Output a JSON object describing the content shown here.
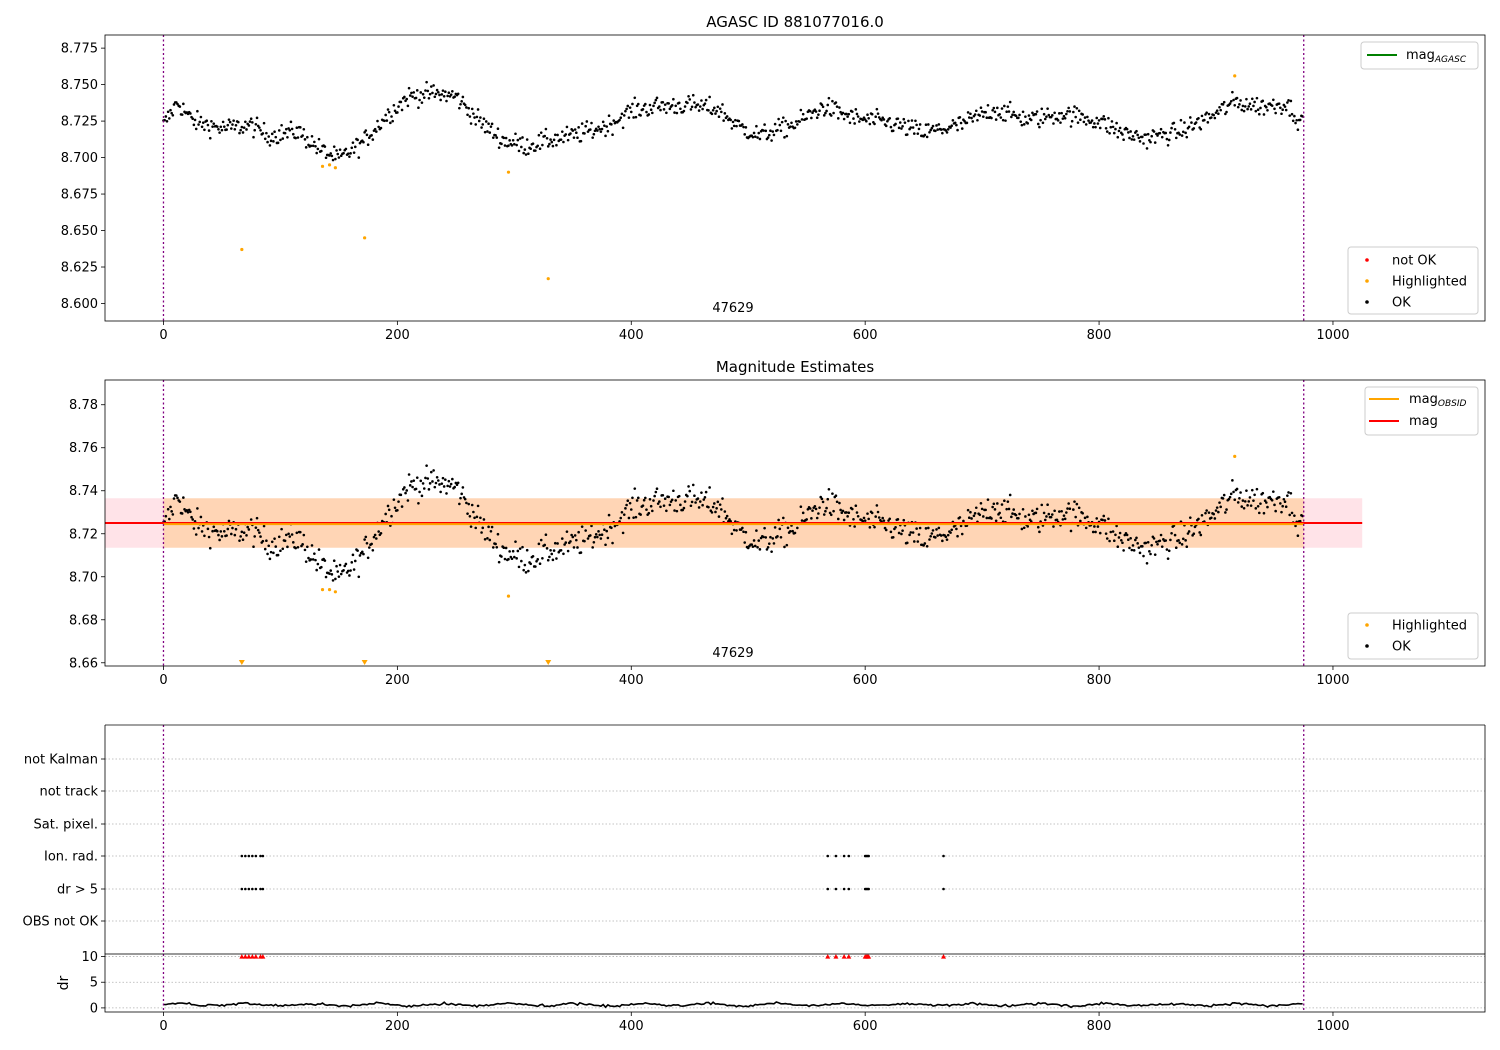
{
  "chart_data": [
    {
      "type": "scatter",
      "title": "AGASC ID 881077016.0",
      "annotation": "47629",
      "xlim": [
        -50,
        1130
      ],
      "ylim": [
        8.588,
        8.784
      ],
      "xticks": [
        0,
        200,
        400,
        600,
        800,
        1000
      ],
      "yticks": [
        8.6,
        8.625,
        8.65,
        8.675,
        8.7,
        8.725,
        8.75,
        8.775
      ],
      "ytick_labels": [
        "8.600",
        "8.625",
        "8.650",
        "8.675",
        "8.700",
        "8.725",
        "8.750",
        "8.775"
      ],
      "vlines": [
        0,
        975
      ],
      "legend_lines": [
        {
          "label": "mag",
          "sub": "AGASC",
          "color": "#008000"
        }
      ],
      "legend_points": [
        {
          "label": "not OK",
          "color": "#ff0000"
        },
        {
          "label": "Highlighted",
          "color": "#ffa500"
        },
        {
          "label": "OK",
          "color": "#000000"
        }
      ],
      "highlighted": [
        [
          67,
          8.637
        ],
        [
          136,
          8.694
        ],
        [
          142,
          8.695
        ],
        [
          147,
          8.693
        ],
        [
          172,
          8.645
        ],
        [
          295,
          8.69
        ],
        [
          329,
          8.617
        ],
        [
          916,
          8.756
        ]
      ],
      "ok_trend": [
        [
          0,
          8.722
        ],
        [
          12,
          8.738
        ],
        [
          25,
          8.725
        ],
        [
          50,
          8.72
        ],
        [
          75,
          8.722
        ],
        [
          90,
          8.715
        ],
        [
          115,
          8.718
        ],
        [
          135,
          8.705
        ],
        [
          150,
          8.699
        ],
        [
          170,
          8.71
        ],
        [
          190,
          8.728
        ],
        [
          210,
          8.742
        ],
        [
          230,
          8.744
        ],
        [
          250,
          8.742
        ],
        [
          270,
          8.725
        ],
        [
          290,
          8.712
        ],
        [
          310,
          8.708
        ],
        [
          330,
          8.712
        ],
        [
          350,
          8.715
        ],
        [
          380,
          8.722
        ],
        [
          400,
          8.732
        ],
        [
          420,
          8.735
        ],
        [
          450,
          8.736
        ],
        [
          475,
          8.733
        ],
        [
          490,
          8.722
        ],
        [
          510,
          8.715
        ],
        [
          540,
          8.723
        ],
        [
          565,
          8.735
        ],
        [
          590,
          8.727
        ],
        [
          620,
          8.724
        ],
        [
          650,
          8.717
        ],
        [
          680,
          8.722
        ],
        [
          710,
          8.733
        ],
        [
          740,
          8.726
        ],
        [
          770,
          8.73
        ],
        [
          800,
          8.725
        ],
        [
          820,
          8.717
        ],
        [
          840,
          8.713
        ],
        [
          870,
          8.718
        ],
        [
          900,
          8.73
        ],
        [
          915,
          8.738
        ],
        [
          940,
          8.735
        ],
        [
          960,
          8.737
        ],
        [
          975,
          8.722
        ]
      ],
      "ok_count": 975,
      "ok_noise": 0.006
    },
    {
      "type": "scatter",
      "title": "Magnitude Estimates",
      "annotation": "47629",
      "xlim": [
        -50,
        1130
      ],
      "ylim": [
        8.6585,
        8.7915
      ],
      "xticks": [
        0,
        200,
        400,
        600,
        800,
        1000
      ],
      "yticks": [
        8.66,
        8.68,
        8.7,
        8.72,
        8.74,
        8.76,
        8.78
      ],
      "ytick_labels": [
        "8.66",
        "8.68",
        "8.70",
        "8.72",
        "8.74",
        "8.76",
        "8.78"
      ],
      "vlines": [
        0,
        975
      ],
      "mag": 8.725,
      "mag_obsid": 8.7245,
      "band": [
        8.7135,
        8.7365
      ],
      "legend_lines": [
        {
          "label": "mag",
          "sub": "OBSID",
          "color": "#ffa500"
        },
        {
          "label": "mag",
          "sub": "",
          "color": "#ff0000"
        }
      ],
      "legend_points": [
        {
          "label": "Highlighted",
          "color": "#ffa500"
        },
        {
          "label": "OK",
          "color": "#000000"
        }
      ],
      "highlighted": [
        [
          136,
          8.694
        ],
        [
          142,
          8.694
        ],
        [
          147,
          8.693
        ],
        [
          295,
          8.691
        ],
        [
          916,
          8.756
        ]
      ],
      "lower_limit_markers": [
        67,
        172,
        329
      ]
    },
    {
      "type": "scatter",
      "categories": [
        "OBS not OK",
        "dr > 5",
        "Ion. rad.",
        "Sat. pixel.",
        "not track",
        "not Kalman"
      ],
      "flagged_x": [
        67,
        70,
        73,
        76,
        79,
        83,
        85,
        568,
        575,
        582,
        586,
        600,
        601,
        602,
        603,
        667
      ],
      "dr_ylabel": "dr",
      "dr_yticks": [
        0,
        5,
        10
      ],
      "dr_ylim": [
        -0.8,
        10.5
      ],
      "dr_typical": 0.6,
      "dr_cap": 10,
      "xticks": [
        0,
        200,
        400,
        600,
        800,
        1000
      ],
      "xlim": [
        -50,
        1130
      ]
    }
  ]
}
